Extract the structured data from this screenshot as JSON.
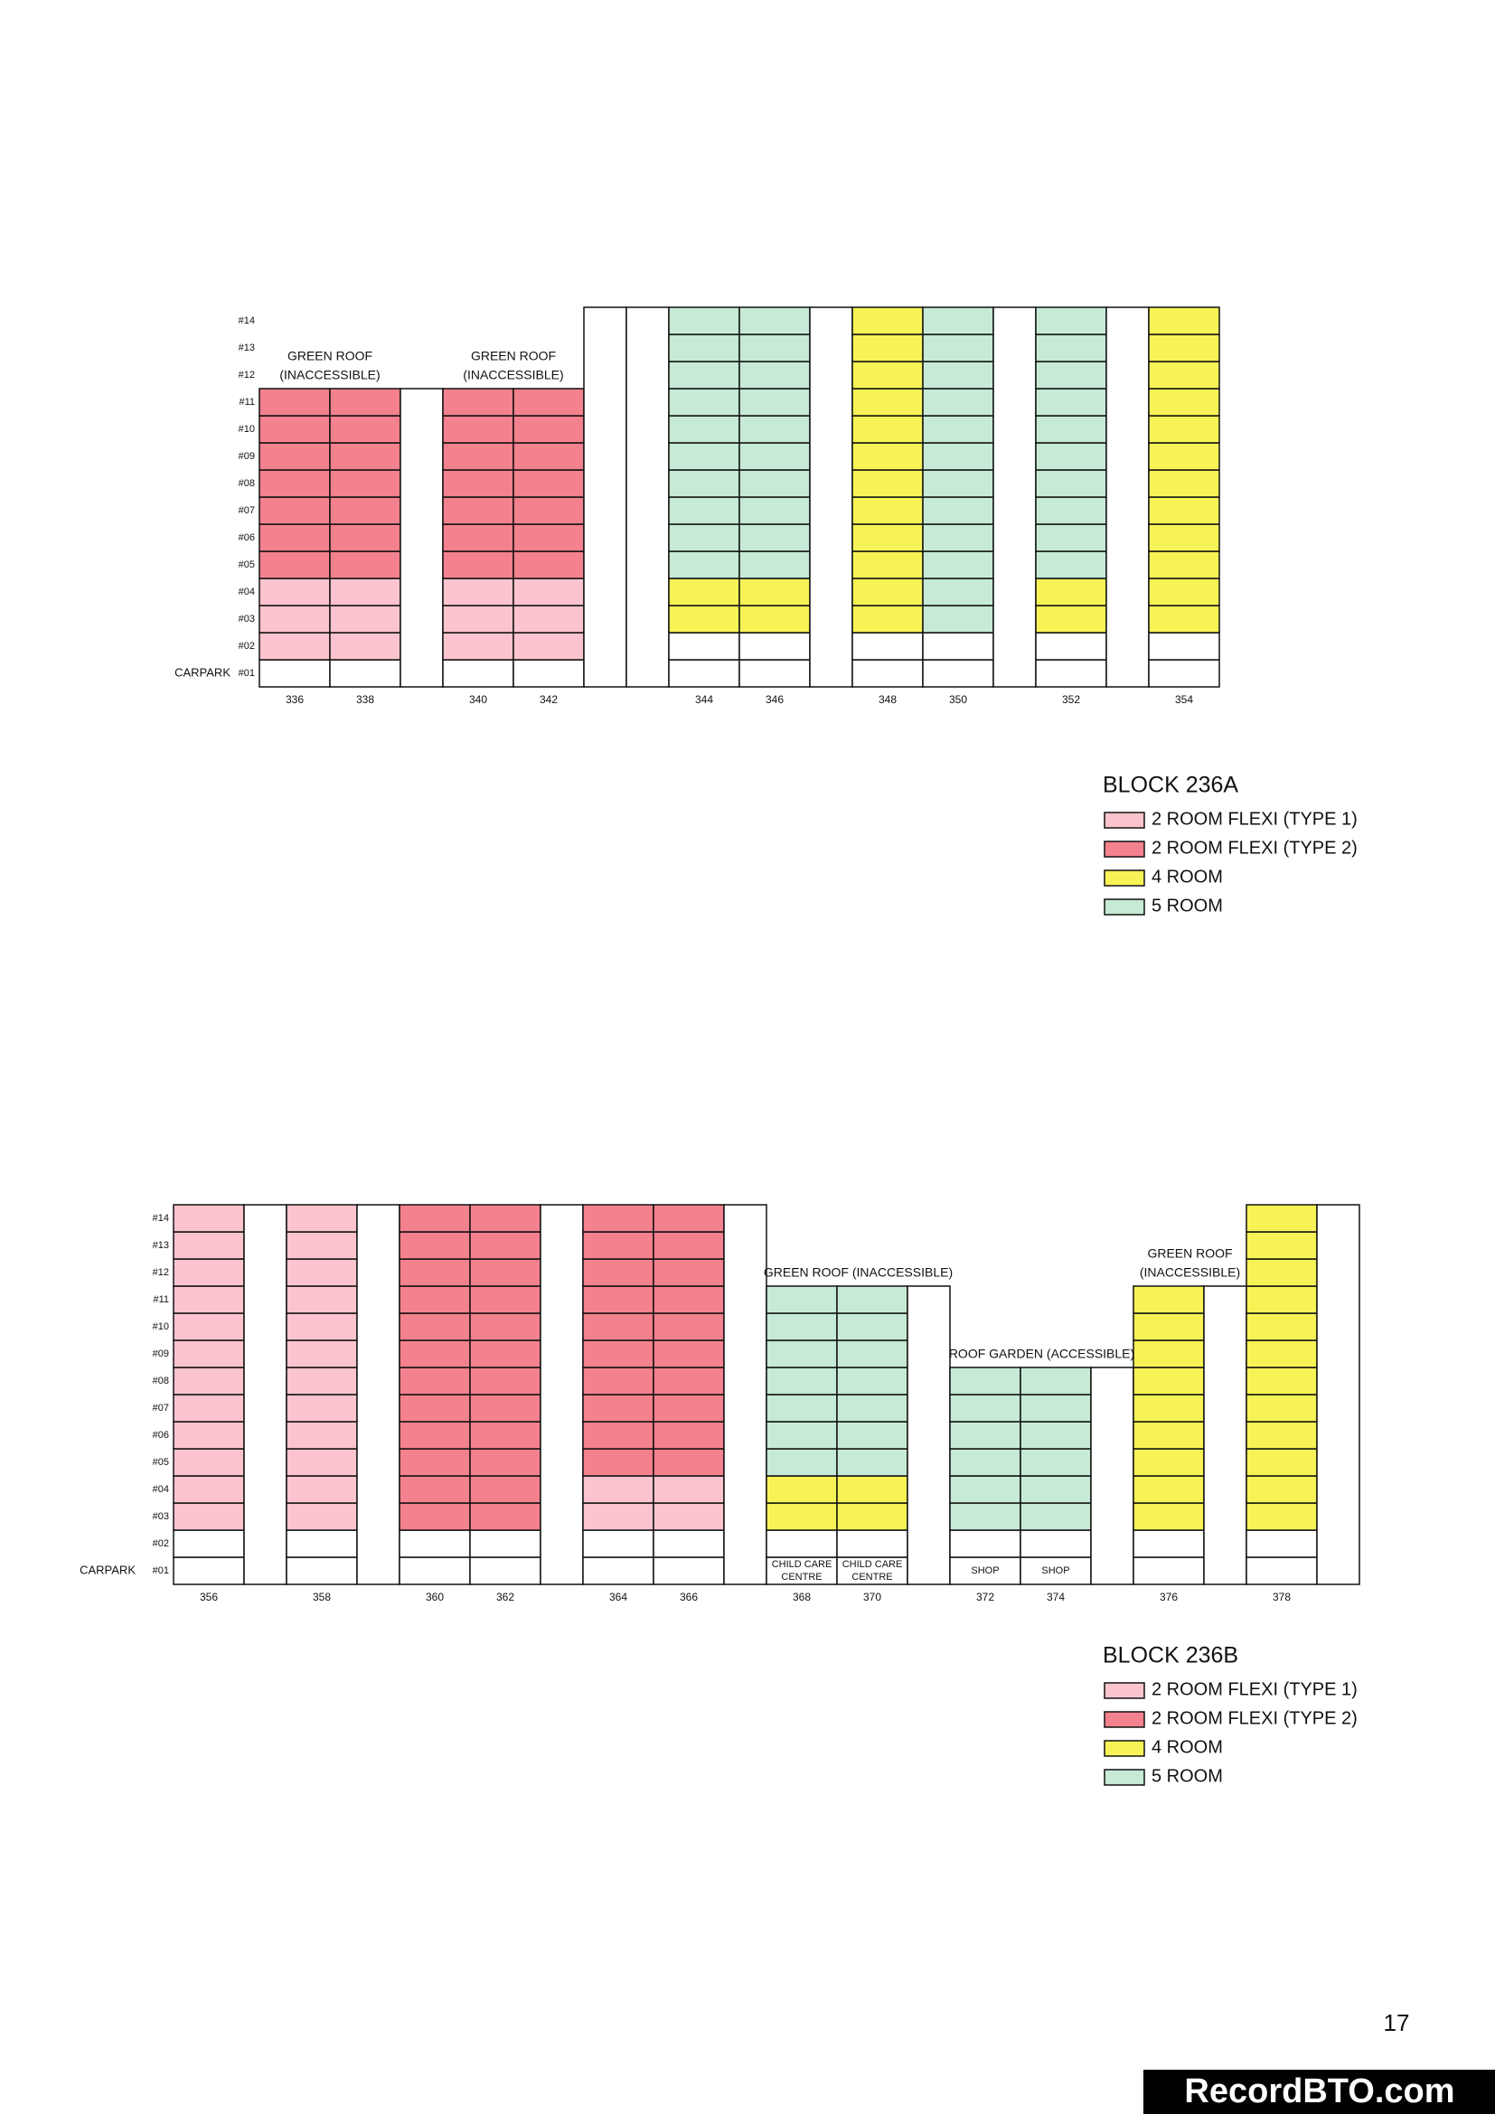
{
  "blocks": [
    {
      "floors": [
        "#01",
        "#02",
        "#03",
        "#04",
        "#05",
        "#06",
        "#07",
        "#08",
        "#09",
        "#10",
        "#11",
        "#12",
        "#13",
        "#14"
      ],
      "carpark": "CARPARK",
      "groups": [
        {
          "note": [
            "GREEN ROOF",
            "(INACCESSIBLE)"
          ],
          "columns": [
            {
              "unit": "336",
              "cells": [
                "#ffffff",
                "#fcc4cf",
                "#fcc4cf",
                "#fcc4cf",
                "#f4818e",
                "#f4818e",
                "#f4818e",
                "#f4818e",
                "#f4818e",
                "#f4818e",
                "#f4818e"
              ]
            },
            {
              "unit": "338",
              "cells": [
                "#ffffff",
                "#fcc4cf",
                "#fcc4cf",
                "#fcc4cf",
                "#f4818e",
                "#f4818e",
                "#f4818e",
                "#f4818e",
                "#f4818e",
                "#f4818e",
                "#f4818e"
              ]
            }
          ]
        },
        {
          "columns": [
            {
              "cells": [
                "#ffffff",
                "#ffffff",
                "#ffffff",
                "#ffffff",
                "#ffffff",
                "#ffffff",
                "#ffffff",
                "#ffffff",
                "#ffffff",
                "#ffffff",
                "#ffffff"
              ]
            }
          ]
        },
        {
          "note": [
            "GREEN ROOF",
            "(INACCESSIBLE)"
          ],
          "columns": [
            {
              "unit": "340",
              "cells": [
                "#ffffff",
                "#fcc4cf",
                "#fcc4cf",
                "#fcc4cf",
                "#f4818e",
                "#f4818e",
                "#f4818e",
                "#f4818e",
                "#f4818e",
                "#f4818e",
                "#f4818e"
              ]
            },
            {
              "unit": "342",
              "cells": [
                "#ffffff",
                "#fcc4cf",
                "#fcc4cf",
                "#fcc4cf",
                "#f4818e",
                "#f4818e",
                "#f4818e",
                "#f4818e",
                "#f4818e",
                "#f4818e",
                "#f4818e"
              ]
            }
          ]
        },
        {
          "columns": [
            {
              "cells": [
                "#ffffff",
                "#ffffff",
                "#ffffff",
                "#ffffff",
                "#ffffff",
                "#ffffff",
                "#ffffff",
                "#ffffff",
                "#ffffff",
                "#ffffff",
                "#ffffff",
                "#ffffff",
                "#ffffff",
                "#ffffff"
              ]
            },
            {
              "cells": [
                "#ffffff",
                "#ffffff",
                "#ffffff",
                "#ffffff",
                "#ffffff",
                "#ffffff",
                "#ffffff",
                "#ffffff",
                "#ffffff",
                "#ffffff",
                "#ffffff",
                "#ffffff",
                "#ffffff",
                "#ffffff"
              ]
            }
          ]
        },
        {
          "columns": [
            {
              "unit": "344",
              "cells": [
                "#ffffff",
                "#ffffff",
                "#f7f356",
                "#f7f356",
                "#c6ead5",
                "#c6ead5",
                "#c6ead5",
                "#c6ead5",
                "#c6ead5",
                "#c6ead5",
                "#c6ead5",
                "#c6ead5",
                "#c6ead5",
                "#c6ead5"
              ]
            },
            {
              "unit": "346",
              "cells": [
                "#ffffff",
                "#ffffff",
                "#f7f356",
                "#f7f356",
                "#c6ead5",
                "#c6ead5",
                "#c6ead5",
                "#c6ead5",
                "#c6ead5",
                "#c6ead5",
                "#c6ead5",
                "#c6ead5",
                "#c6ead5",
                "#c6ead5"
              ]
            }
          ]
        },
        {
          "columns": [
            {
              "cells": [
                "#ffffff",
                "#ffffff",
                "#ffffff",
                "#ffffff",
                "#ffffff",
                "#ffffff",
                "#ffffff",
                "#ffffff",
                "#ffffff",
                "#ffffff",
                "#ffffff",
                "#ffffff",
                "#ffffff",
                "#ffffff"
              ]
            }
          ]
        },
        {
          "columns": [
            {
              "unit": "348",
              "cells": [
                "#ffffff",
                "#ffffff",
                "#f7f356",
                "#f7f356",
                "#f7f356",
                "#f7f356",
                "#f7f356",
                "#f7f356",
                "#f7f356",
                "#f7f356",
                "#f7f356",
                "#f7f356",
                "#f7f356",
                "#f7f356"
              ]
            },
            {
              "unit": "350",
              "cells": [
                "#ffffff",
                "#ffffff",
                "#c6ead5",
                "#c6ead5",
                "#c6ead5",
                "#c6ead5",
                "#c6ead5",
                "#c6ead5",
                "#c6ead5",
                "#c6ead5",
                "#c6ead5",
                "#c6ead5",
                "#c6ead5",
                "#c6ead5"
              ]
            }
          ]
        },
        {
          "columns": [
            {
              "cells": [
                "#ffffff",
                "#ffffff",
                "#ffffff",
                "#ffffff",
                "#ffffff",
                "#ffffff",
                "#ffffff",
                "#ffffff",
                "#ffffff",
                "#ffffff",
                "#ffffff",
                "#ffffff",
                "#ffffff",
                "#ffffff"
              ]
            }
          ]
        },
        {
          "columns": [
            {
              "unit": "352",
              "cells": [
                "#ffffff",
                "#ffffff",
                "#f7f356",
                "#f7f356",
                "#c6ead5",
                "#c6ead5",
                "#c6ead5",
                "#c6ead5",
                "#c6ead5",
                "#c6ead5",
                "#c6ead5",
                "#c6ead5",
                "#c6ead5",
                "#c6ead5"
              ]
            }
          ]
        },
        {
          "columns": [
            {
              "cells": [
                "#ffffff",
                "#ffffff",
                "#ffffff",
                "#ffffff",
                "#ffffff",
                "#ffffff",
                "#ffffff",
                "#ffffff",
                "#ffffff",
                "#ffffff",
                "#ffffff",
                "#ffffff",
                "#ffffff",
                "#ffffff"
              ]
            }
          ]
        },
        {
          "columns": [
            {
              "unit": "354",
              "cells": [
                "#ffffff",
                "#ffffff",
                "#f7f356",
                "#f7f356",
                "#f7f356",
                "#f7f356",
                "#f7f356",
                "#f7f356",
                "#f7f356",
                "#f7f356",
                "#f7f356",
                "#f7f356",
                "#f7f356",
                "#f7f356"
              ]
            }
          ]
        }
      ],
      "legend": {
        "title": "BLOCK 236A",
        "items": [
          {
            "name": "2 ROOM FLEXI (TYPE 1)",
            "color": "#fcc4cf"
          },
          {
            "name": "2 ROOM FLEXI (TYPE 2)",
            "color": "#f4818e"
          },
          {
            "name": "4 ROOM",
            "color": "#f7f356"
          },
          {
            "name": "5 ROOM",
            "color": "#c6ead5"
          }
        ]
      }
    },
    {
      "floors": [
        "#01",
        "#02",
        "#03",
        "#04",
        "#05",
        "#06",
        "#07",
        "#08",
        "#09",
        "#10",
        "#11",
        "#12",
        "#13",
        "#14"
      ],
      "carpark": "CARPARK",
      "groups": [
        {
          "columns": [
            {
              "unit": "356",
              "cells": [
                "#ffffff",
                "#ffffff",
                "#fcc4cf",
                "#fcc4cf",
                "#fcc4cf",
                "#fcc4cf",
                "#fcc4cf",
                "#fcc4cf",
                "#fcc4cf",
                "#fcc4cf",
                "#fcc4cf",
                "#fcc4cf",
                "#fcc4cf",
                "#fcc4cf"
              ]
            }
          ]
        },
        {
          "columns": [
            {
              "cells": [
                "#ffffff",
                "#ffffff",
                "#ffffff",
                "#ffffff",
                "#ffffff",
                "#ffffff",
                "#ffffff",
                "#ffffff",
                "#ffffff",
                "#ffffff",
                "#ffffff",
                "#ffffff",
                "#ffffff",
                "#ffffff"
              ]
            }
          ]
        },
        {
          "columns": [
            {
              "unit": "358",
              "cells": [
                "#ffffff",
                "#ffffff",
                "#fcc4cf",
                "#fcc4cf",
                "#fcc4cf",
                "#fcc4cf",
                "#fcc4cf",
                "#fcc4cf",
                "#fcc4cf",
                "#fcc4cf",
                "#fcc4cf",
                "#fcc4cf",
                "#fcc4cf",
                "#fcc4cf"
              ]
            }
          ]
        },
        {
          "columns": [
            {
              "cells": [
                "#ffffff",
                "#ffffff",
                "#ffffff",
                "#ffffff",
                "#ffffff",
                "#ffffff",
                "#ffffff",
                "#ffffff",
                "#ffffff",
                "#ffffff",
                "#ffffff",
                "#ffffff",
                "#ffffff",
                "#ffffff"
              ]
            }
          ]
        },
        {
          "columns": [
            {
              "unit": "360",
              "cells": [
                "#ffffff",
                "#ffffff",
                "#f4818e",
                "#f4818e",
                "#f4818e",
                "#f4818e",
                "#f4818e",
                "#f4818e",
                "#f4818e",
                "#f4818e",
                "#f4818e",
                "#f4818e",
                "#f4818e",
                "#f4818e"
              ]
            },
            {
              "unit": "362",
              "cells": [
                "#ffffff",
                "#ffffff",
                "#f4818e",
                "#f4818e",
                "#f4818e",
                "#f4818e",
                "#f4818e",
                "#f4818e",
                "#f4818e",
                "#f4818e",
                "#f4818e",
                "#f4818e",
                "#f4818e",
                "#f4818e"
              ]
            }
          ]
        },
        {
          "columns": [
            {
              "cells": [
                "#ffffff",
                "#ffffff",
                "#ffffff",
                "#ffffff",
                "#ffffff",
                "#ffffff",
                "#ffffff",
                "#ffffff",
                "#ffffff",
                "#ffffff",
                "#ffffff",
                "#ffffff",
                "#ffffff",
                "#ffffff"
              ]
            }
          ]
        },
        {
          "columns": [
            {
              "unit": "364",
              "cells": [
                "#ffffff",
                "#ffffff",
                "#fcc4cf",
                "#fcc4cf",
                "#f4818e",
                "#f4818e",
                "#f4818e",
                "#f4818e",
                "#f4818e",
                "#f4818e",
                "#f4818e",
                "#f4818e",
                "#f4818e",
                "#f4818e"
              ]
            },
            {
              "unit": "366",
              "cells": [
                "#ffffff",
                "#ffffff",
                "#fcc4cf",
                "#fcc4cf",
                "#f4818e",
                "#f4818e",
                "#f4818e",
                "#f4818e",
                "#f4818e",
                "#f4818e",
                "#f4818e",
                "#f4818e",
                "#f4818e",
                "#f4818e"
              ]
            }
          ]
        },
        {
          "columns": [
            {
              "cells": [
                "#ffffff",
                "#ffffff",
                "#ffffff",
                "#ffffff",
                "#ffffff",
                "#ffffff",
                "#ffffff",
                "#ffffff",
                "#ffffff",
                "#ffffff",
                "#ffffff",
                "#ffffff",
                "#ffffff",
                "#ffffff"
              ]
            }
          ]
        },
        {
          "note": [
            "GREEN ROOF (INACCESSIBLE)"
          ],
          "columns": [
            {
              "unit": "368",
              "ground_label": [
                "CHILD CARE",
                "CENTRE"
              ],
              "cells": [
                "#ffffff",
                "#ffffff",
                "#f7f356",
                "#f7f356",
                "#c6ead5",
                "#c6ead5",
                "#c6ead5",
                "#c6ead5",
                "#c6ead5",
                "#c6ead5",
                "#c6ead5"
              ]
            },
            {
              "unit": "370",
              "ground_label": [
                "CHILD CARE",
                "CENTRE"
              ],
              "cells": [
                "#ffffff",
                "#ffffff",
                "#f7f356",
                "#f7f356",
                "#c6ead5",
                "#c6ead5",
                "#c6ead5",
                "#c6ead5",
                "#c6ead5",
                "#c6ead5",
                "#c6ead5"
              ]
            },
            {
              "cells": [
                "#ffffff",
                "#ffffff",
                "#ffffff",
                "#ffffff",
                "#ffffff",
                "#ffffff",
                "#ffffff",
                "#ffffff",
                "#ffffff",
                "#ffffff",
                "#ffffff"
              ]
            }
          ]
        },
        {
          "note": [
            "ROOF GARDEN (ACCESSIBLE)"
          ],
          "columns": [
            {
              "unit": "372",
              "ground_label": [
                "SHOP"
              ],
              "cells": [
                "#ffffff",
                "#ffffff",
                "#c6ead5",
                "#c6ead5",
                "#c6ead5",
                "#c6ead5",
                "#c6ead5",
                "#c6ead5"
              ]
            },
            {
              "unit": "374",
              "ground_label": [
                "SHOP"
              ],
              "cells": [
                "#ffffff",
                "#ffffff",
                "#c6ead5",
                "#c6ead5",
                "#c6ead5",
                "#c6ead5",
                "#c6ead5",
                "#c6ead5"
              ]
            },
            {
              "cells": [
                "#ffffff",
                "#ffffff",
                "#ffffff",
                "#ffffff",
                "#ffffff",
                "#ffffff",
                "#ffffff",
                "#ffffff"
              ]
            }
          ]
        },
        {
          "note": [
            "GREEN ROOF",
            "(INACCESSIBLE)"
          ],
          "columns": [
            {
              "unit": "376",
              "cells": [
                "#ffffff",
                "#ffffff",
                "#f7f356",
                "#f7f356",
                "#f7f356",
                "#f7f356",
                "#f7f356",
                "#f7f356",
                "#f7f356",
                "#f7f356",
                "#f7f356"
              ]
            },
            {
              "cells": [
                "#ffffff",
                "#ffffff",
                "#ffffff",
                "#ffffff",
                "#ffffff",
                "#ffffff",
                "#ffffff",
                "#ffffff",
                "#ffffff",
                "#ffffff",
                "#ffffff"
              ]
            }
          ]
        },
        {
          "columns": [
            {
              "unit": "378",
              "cells": [
                "#ffffff",
                "#ffffff",
                "#f7f356",
                "#f7f356",
                "#f7f356",
                "#f7f356",
                "#f7f356",
                "#f7f356",
                "#f7f356",
                "#f7f356",
                "#f7f356",
                "#f7f356",
                "#f7f356",
                "#f7f356"
              ]
            },
            {
              "cells": [
                "#ffffff",
                "#ffffff",
                "#ffffff",
                "#ffffff",
                "#ffffff",
                "#ffffff",
                "#ffffff",
                "#ffffff",
                "#ffffff",
                "#ffffff",
                "#ffffff",
                "#ffffff",
                "#ffffff",
                "#ffffff"
              ]
            }
          ]
        }
      ],
      "legend": {
        "title": "BLOCK 236B",
        "items": [
          {
            "name": "2 ROOM FLEXI (TYPE 1)",
            "color": "#fcc4cf"
          },
          {
            "name": "2 ROOM FLEXI (TYPE 2)",
            "color": "#f4818e"
          },
          {
            "name": "4 ROOM",
            "color": "#f7f356"
          },
          {
            "name": "5 ROOM",
            "color": "#c6ead5"
          }
        ]
      }
    }
  ],
  "page_number": "17",
  "watermark": "RecordBTO.com"
}
